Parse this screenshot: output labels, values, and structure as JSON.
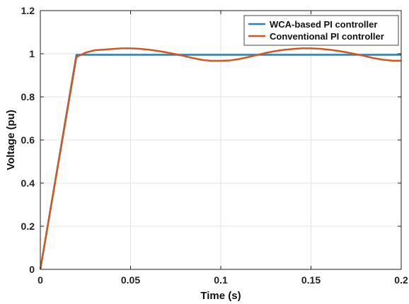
{
  "chart_data": {
    "type": "line",
    "title": "",
    "xlabel": "Time (s)",
    "ylabel": "Voltage (pu)",
    "xlim": [
      0,
      0.2
    ],
    "ylim": [
      0,
      1.2
    ],
    "xticks": [
      0,
      0.05,
      0.1,
      0.15,
      0.2
    ],
    "xtick_labels": [
      "0",
      "0.05",
      "0.1",
      "0.15",
      "0.2"
    ],
    "yticks": [
      0,
      0.2,
      0.4,
      0.6,
      0.8,
      1,
      1.2
    ],
    "ytick_labels": [
      "0",
      "0.2",
      "0.4",
      "0.6",
      "0.8",
      "1",
      "1.2"
    ],
    "grid": true,
    "legend_position": "top-right",
    "series": [
      {
        "name": "WCA-based PI controller",
        "color": "#2e7fb6",
        "x": [
          0,
          0.02,
          0.2
        ],
        "y": [
          0,
          0.995,
          0.995
        ]
      },
      {
        "name": "Conventional PI controller",
        "color": "#d2571f",
        "x": [
          0,
          0.02,
          0.025,
          0.03,
          0.035,
          0.04,
          0.045,
          0.05,
          0.055,
          0.06,
          0.065,
          0.07,
          0.075,
          0.08,
          0.085,
          0.09,
          0.095,
          0.1,
          0.105,
          0.11,
          0.115,
          0.12,
          0.125,
          0.13,
          0.135,
          0.14,
          0.145,
          0.15,
          0.155,
          0.16,
          0.165,
          0.17,
          0.175,
          0.18,
          0.185,
          0.19,
          0.195,
          0.2
        ],
        "y": [
          0,
          0.985,
          1.005,
          1.016,
          1.019,
          1.022,
          1.025,
          1.025,
          1.023,
          1.019,
          1.013,
          1.006,
          0.998,
          0.989,
          0.979,
          0.971,
          0.967,
          0.967,
          0.969,
          0.975,
          0.984,
          0.994,
          1.004,
          1.012,
          1.018,
          1.022,
          1.025,
          1.025,
          1.023,
          1.019,
          1.013,
          1.006,
          0.998,
          0.989,
          0.979,
          0.972,
          0.968,
          0.967
        ]
      }
    ]
  }
}
